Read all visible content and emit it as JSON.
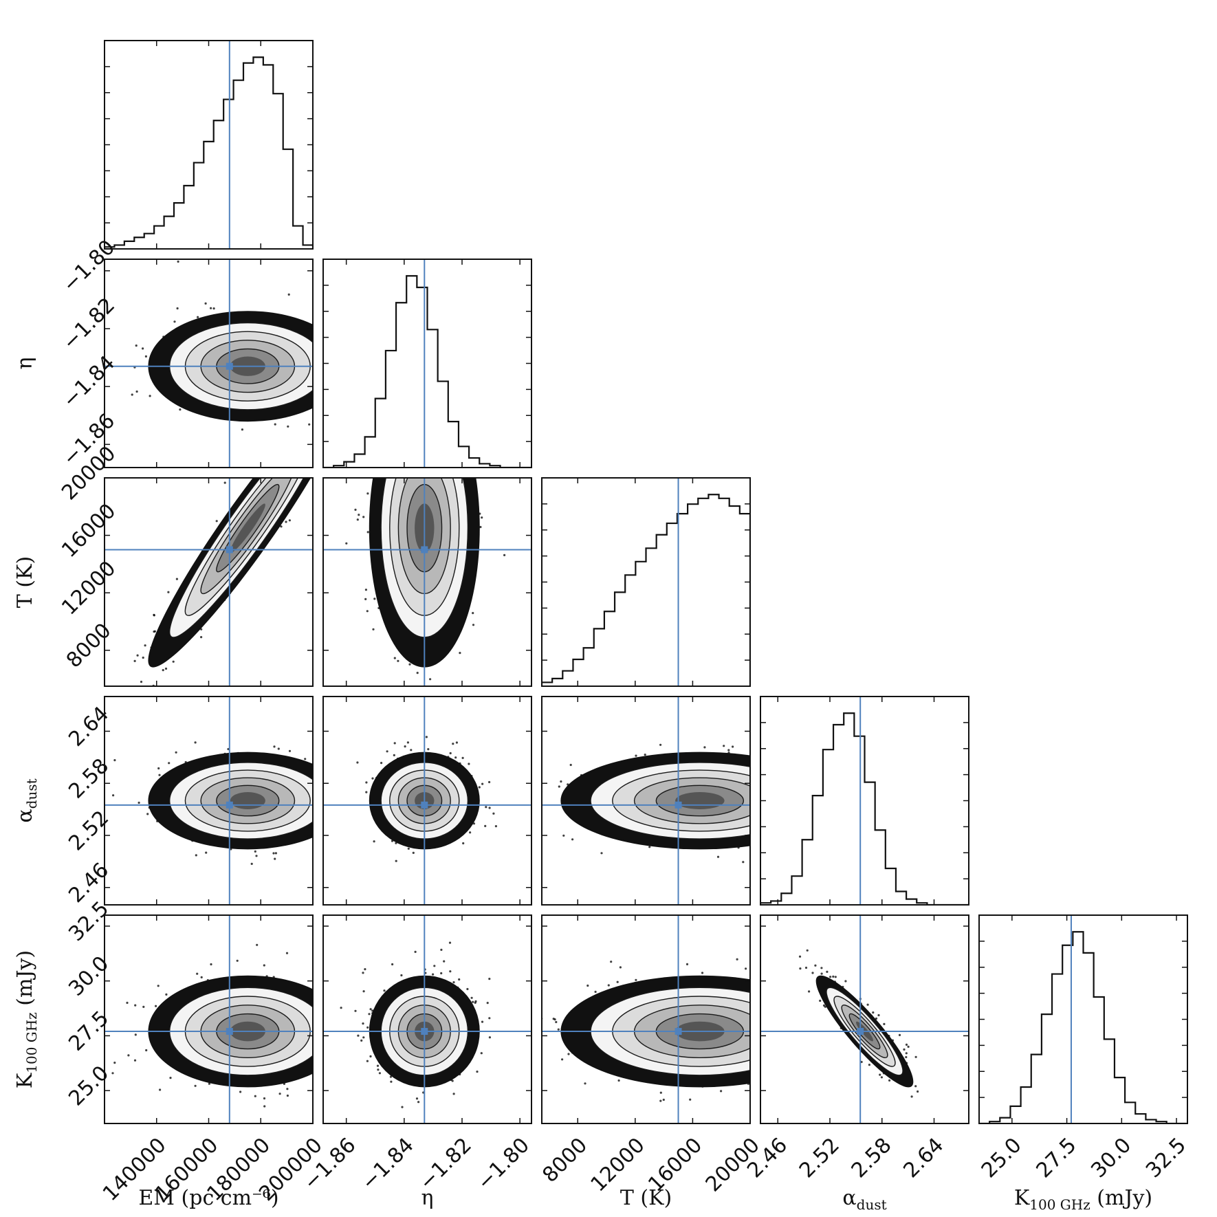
{
  "chart_data": {
    "type": "corner",
    "grid": false,
    "legend": "none",
    "colors": {
      "truth": "#4f81bd",
      "hist": "#111111",
      "points": "#000000"
    },
    "params": [
      {
        "id": "em",
        "label": "EM (pc cm⁻⁶)",
        "range": [
          120000,
          200000
        ],
        "ticks": [
          140000,
          160000,
          180000,
          200000
        ],
        "tick_labels": [
          "140000",
          "160000",
          "180000",
          "200000"
        ],
        "truth": 168000,
        "mean": 175000,
        "sigma": 15000
      },
      {
        "id": "eta",
        "label": "η",
        "range": [
          -1.868,
          -1.796
        ],
        "ticks": [
          -1.86,
          -1.84,
          -1.82,
          -1.8
        ],
        "tick_labels": [
          "−1.86",
          "−1.84",
          "−1.82",
          "−1.80"
        ],
        "truth": -1.833,
        "mean": -1.833,
        "sigma": 0.0075
      },
      {
        "id": "T",
        "label": "T (K)",
        "range": [
          5500,
          20000
        ],
        "ticks": [
          8000,
          12000,
          16000,
          20000
        ],
        "tick_labels": [
          "8000",
          "12000",
          "16000",
          "20000"
        ],
        "truth": 15000,
        "mean": 16500,
        "sigma": 3800
      },
      {
        "id": "alpha",
        "label": "α",
        "label_sub": "dust",
        "range": [
          2.44,
          2.68
        ],
        "ticks": [
          2.46,
          2.52,
          2.58,
          2.64
        ],
        "tick_labels": [
          "2.46",
          "2.52",
          "2.58",
          "2.64"
        ],
        "truth": 2.555,
        "mean": 2.56,
        "sigma": 0.022
      },
      {
        "id": "K",
        "label": "K",
        "label_sub": "100 GHz",
        "label_suffix": " (mJy)",
        "range": [
          23.5,
          33.0
        ],
        "ticks": [
          25.0,
          27.5,
          30.0,
          32.5
        ],
        "tick_labels": [
          "25.0",
          "27.5",
          "30.0",
          "32.5"
        ],
        "truth": 27.7,
        "mean": 27.7,
        "sigma": 1.0
      }
    ],
    "histograms": {
      "em": [
        0.01,
        0.02,
        0.04,
        0.06,
        0.08,
        0.12,
        0.17,
        0.24,
        0.33,
        0.45,
        0.56,
        0.67,
        0.78,
        0.88,
        0.97,
        1.0,
        0.96,
        0.81,
        0.52,
        0.12,
        0.02
      ],
      "eta": [
        0.0,
        0.01,
        0.03,
        0.07,
        0.16,
        0.36,
        0.61,
        0.86,
        1.0,
        0.94,
        0.72,
        0.45,
        0.24,
        0.11,
        0.05,
        0.02,
        0.01,
        0.0,
        0.0,
        0.0
      ],
      "T": [
        0.02,
        0.04,
        0.08,
        0.14,
        0.2,
        0.3,
        0.39,
        0.49,
        0.58,
        0.65,
        0.72,
        0.79,
        0.85,
        0.9,
        0.95,
        0.98,
        1.0,
        0.98,
        0.94,
        0.9
      ],
      "alpha": [
        0.01,
        0.02,
        0.06,
        0.15,
        0.34,
        0.57,
        0.81,
        0.94,
        1.0,
        0.88,
        0.64,
        0.39,
        0.19,
        0.07,
        0.03,
        0.01,
        0.0,
        0.0,
        0.0,
        0.0
      ],
      "K": [
        0.0,
        0.01,
        0.03,
        0.09,
        0.19,
        0.36,
        0.57,
        0.78,
        0.93,
        1.0,
        0.89,
        0.66,
        0.44,
        0.24,
        0.11,
        0.05,
        0.02,
        0.01,
        0.0,
        0.0
      ]
    },
    "correlations": {
      "em-T": 0.95,
      "alpha-K": -0.9
    }
  }
}
